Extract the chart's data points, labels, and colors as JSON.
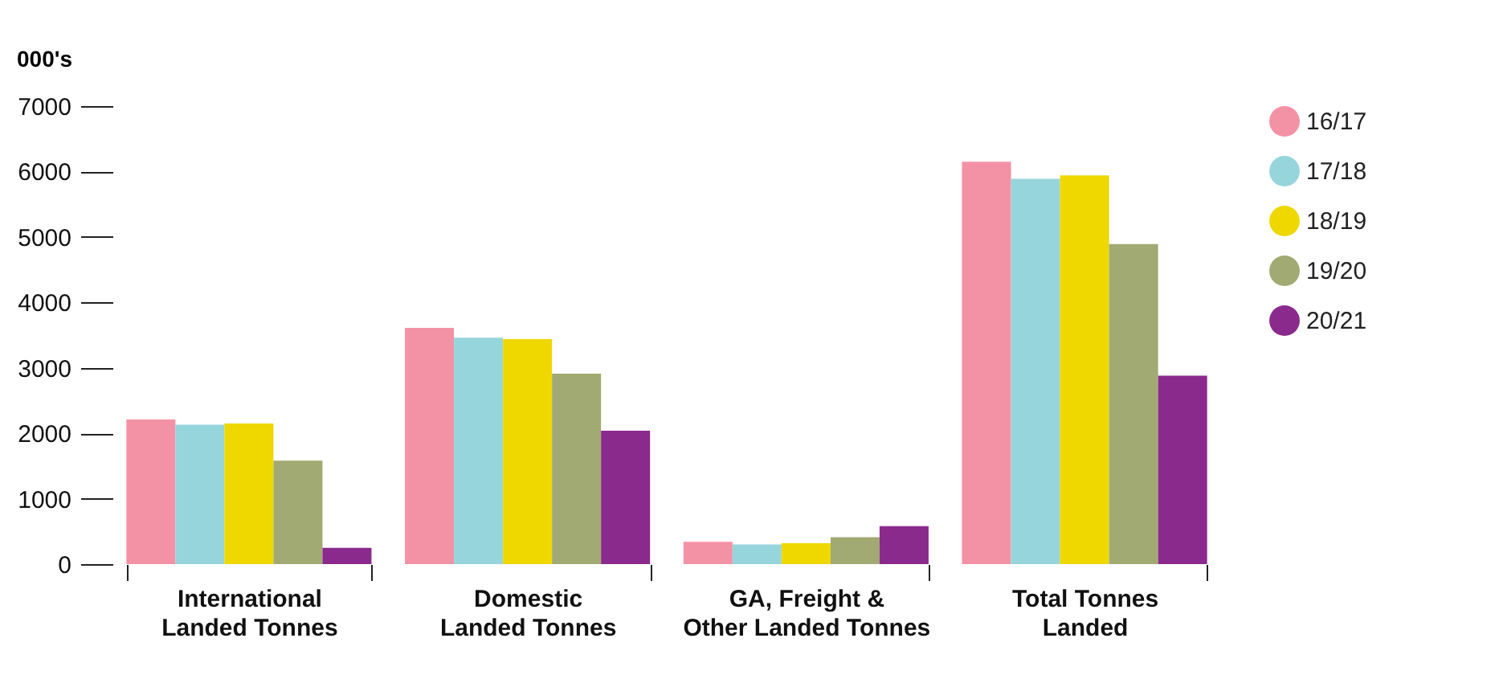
{
  "chart_data": {
    "type": "bar",
    "ylabel": "000's",
    "categories": [
      "International Landed Tonnes",
      "Domestic Landed Tonnes",
      "GA, Freight & Other Landed Tonnes",
      "Total Tonnes Landed"
    ],
    "series": [
      {
        "name": "16/17",
        "color": "#f492a5",
        "values": [
          2210,
          3610,
          340,
          6150
        ]
      },
      {
        "name": "17/18",
        "color": "#97d5dc",
        "values": [
          2130,
          3460,
          300,
          5890
        ]
      },
      {
        "name": "18/19",
        "color": "#eed800",
        "values": [
          2150,
          3440,
          320,
          5940
        ]
      },
      {
        "name": "19/20",
        "color": "#a0aa72",
        "values": [
          1580,
          2910,
          410,
          4890
        ]
      },
      {
        "name": "20/21",
        "color": "#8b2a8d",
        "values": [
          250,
          2040,
          580,
          2880
        ]
      }
    ],
    "ylim": [
      0,
      7000
    ],
    "yticks": [
      0,
      1000,
      2000,
      3000,
      4000,
      5000,
      6000,
      7000
    ],
    "grid": false,
    "legend": "top right"
  }
}
